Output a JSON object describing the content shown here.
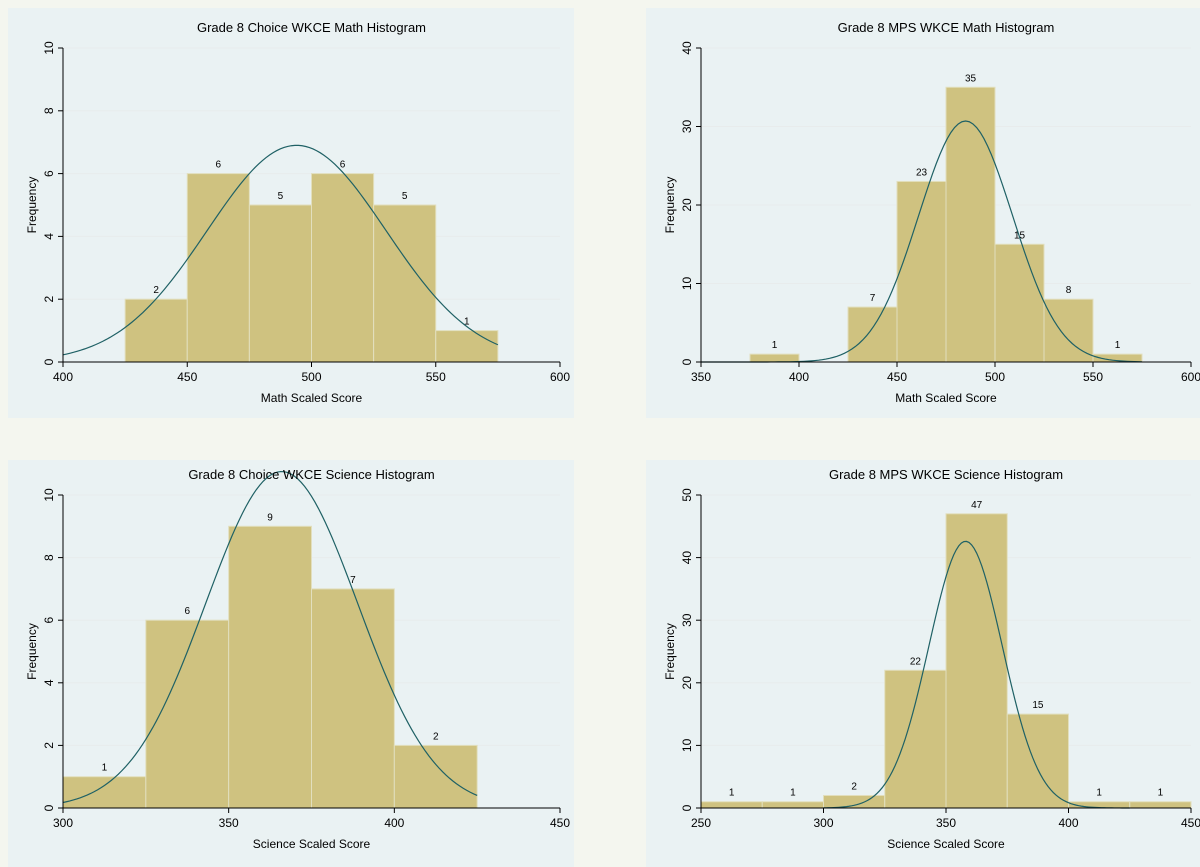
{
  "chart_data": [
    {
      "type": "bar",
      "title": "Grade 8 Choice WKCE Math Histogram",
      "xlabel": "Math Scaled Score",
      "ylabel": "Frequency",
      "xlim": [
        400,
        600
      ],
      "ylim": [
        0,
        10
      ],
      "xticks": [
        400,
        450,
        500,
        550,
        600
      ],
      "yticks": [
        0,
        2,
        4,
        6,
        8,
        10
      ],
      "bins": [
        {
          "from": 425,
          "to": 450,
          "count": 2
        },
        {
          "from": 450,
          "to": 475,
          "count": 6
        },
        {
          "from": 475,
          "to": 500,
          "count": 5
        },
        {
          "from": 500,
          "to": 525,
          "count": 6
        },
        {
          "from": 525,
          "to": 550,
          "count": 5
        },
        {
          "from": 550,
          "to": 575,
          "count": 1
        }
      ],
      "normal_curve": {
        "x_from": 400,
        "x_to": 575,
        "peak_x": 494,
        "peak_y": 6.9,
        "sd": 36
      }
    },
    {
      "type": "bar",
      "title": "Grade 8 MPS WKCE Math Histogram",
      "xlabel": "Math Scaled Score",
      "ylabel": "Frequency",
      "xlim": [
        350,
        600
      ],
      "ylim": [
        0,
        40
      ],
      "xticks": [
        350,
        400,
        450,
        500,
        550,
        600
      ],
      "yticks": [
        0,
        10,
        20,
        30,
        40
      ],
      "bins": [
        {
          "from": 375,
          "to": 400,
          "count": 1
        },
        {
          "from": 425,
          "to": 450,
          "count": 7
        },
        {
          "from": 450,
          "to": 475,
          "count": 23
        },
        {
          "from": 475,
          "to": 500,
          "count": 35
        },
        {
          "from": 500,
          "to": 525,
          "count": 15
        },
        {
          "from": 525,
          "to": 550,
          "count": 8
        },
        {
          "from": 550,
          "to": 575,
          "count": 1
        }
      ],
      "normal_curve": {
        "x_from": 350,
        "x_to": 575,
        "peak_x": 485,
        "peak_y": 30.7,
        "sd": 24
      }
    },
    {
      "type": "bar",
      "title": "Grade 8 Choice WKCE Science Histogram",
      "xlabel": "Science Scaled Score",
      "ylabel": "Frequency",
      "xlim": [
        300,
        450
      ],
      "ylim": [
        0,
        10
      ],
      "xticks": [
        300,
        350,
        400,
        450
      ],
      "yticks": [
        0,
        2,
        4,
        6,
        8,
        10
      ],
      "bins": [
        {
          "from": 300,
          "to": 325,
          "count": 1
        },
        {
          "from": 325,
          "to": 350,
          "count": 6
        },
        {
          "from": 350,
          "to": 375,
          "count": 9
        },
        {
          "from": 375,
          "to": 400,
          "count": 7
        },
        {
          "from": 400,
          "to": 425,
          "count": 2
        }
      ],
      "normal_curve": {
        "x_from": 300,
        "x_to": 425,
        "peak_x": 366,
        "peak_y": 10.75,
        "sd": 23
      }
    },
    {
      "type": "bar",
      "title": "Grade 8 MPS WKCE Science Histogram",
      "xlabel": "Science Scaled Score",
      "ylabel": "Frequency",
      "xlim": [
        250,
        450
      ],
      "ylim": [
        0,
        50
      ],
      "xticks": [
        250,
        300,
        350,
        400,
        450
      ],
      "yticks": [
        0,
        10,
        20,
        30,
        40,
        50
      ],
      "bins": [
        {
          "from": 250,
          "to": 275,
          "count": 1
        },
        {
          "from": 275,
          "to": 300,
          "count": 1
        },
        {
          "from": 300,
          "to": 325,
          "count": 2
        },
        {
          "from": 325,
          "to": 350,
          "count": 22
        },
        {
          "from": 350,
          "to": 375,
          "count": 47
        },
        {
          "from": 375,
          "to": 400,
          "count": 15
        },
        {
          "from": 400,
          "to": 425,
          "count": 1
        },
        {
          "from": 425,
          "to": 450,
          "count": 1
        }
      ],
      "normal_curve": {
        "x_from": 300,
        "x_to": 425,
        "peak_x": 358,
        "peak_y": 42.6,
        "sd": 15
      }
    }
  ],
  "colors": {
    "panel_background": "#eaf2f3",
    "page_background": "#f4f6ef",
    "bar_fill": "#cfc280",
    "bar_stroke": "#e2dfbe",
    "curve": "#1f6165",
    "gridline": "#e8ecec",
    "axis": "#000000"
  }
}
